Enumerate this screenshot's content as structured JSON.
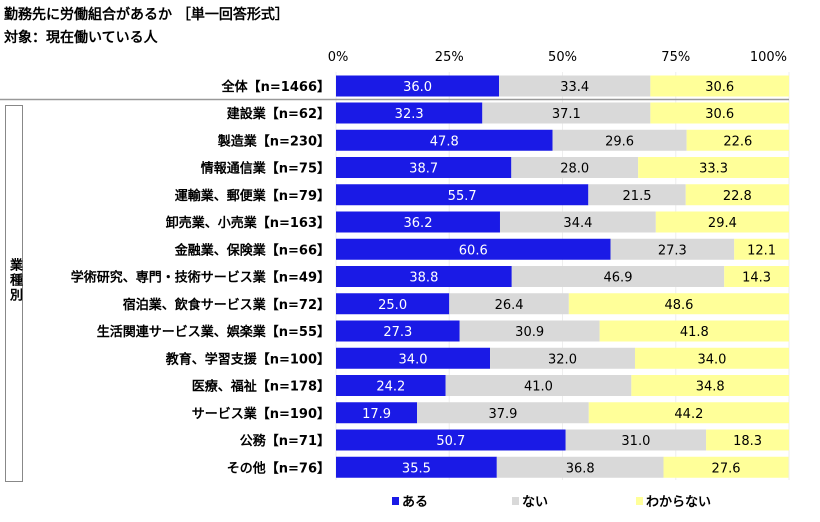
{
  "chart_data": {
    "type": "bar",
    "orientation": "horizontal",
    "stacked": true,
    "title": "勤務先に労働組合があるか ［単一回答形式］",
    "subtitle": "対象：現在働いている人",
    "group_label": "業種別",
    "xlim": [
      0,
      100
    ],
    "x_ticks": [
      "0%",
      "25%",
      "50%",
      "75%",
      "100%"
    ],
    "legend_position": "bottom",
    "categories": [
      "全体【n=1466】",
      "建設業【n=62】",
      "製造業【n=230】",
      "情報通信業【n=75】",
      "運輸業、郵便業【n=79】",
      "卸売業、小売業【n=163】",
      "金融業、保険業【n=66】",
      "学術研究、専門・技術サービス業【n=49】",
      "宿泊業、飲食サービス業【n=72】",
      "生活関連サービス業、娯楽業【n=55】",
      "教育、学習支援【n=100】",
      "医療、福祉【n=178】",
      "サービス業【n=190】",
      "公務【n=71】",
      "その他【n=76】"
    ],
    "series": [
      {
        "name": "ある",
        "color": "#1a1ae6",
        "label_color": "#ffffff",
        "values": [
          36.0,
          32.3,
          47.8,
          38.7,
          55.7,
          36.2,
          60.6,
          38.8,
          25.0,
          27.3,
          34.0,
          24.2,
          17.9,
          50.7,
          35.5
        ]
      },
      {
        "name": "ない",
        "color": "#d9d9d9",
        "label_color": "#000000",
        "values": [
          33.4,
          37.1,
          29.6,
          28.0,
          21.5,
          34.4,
          27.3,
          46.9,
          26.4,
          30.9,
          32.0,
          41.0,
          37.9,
          31.0,
          36.8
        ]
      },
      {
        "name": "わからない",
        "color": "#ffff99",
        "label_color": "#000000",
        "values": [
          30.6,
          30.6,
          22.6,
          33.3,
          22.8,
          29.4,
          12.1,
          14.3,
          48.6,
          41.8,
          34.0,
          34.8,
          44.2,
          18.3,
          27.6
        ]
      }
    ]
  }
}
